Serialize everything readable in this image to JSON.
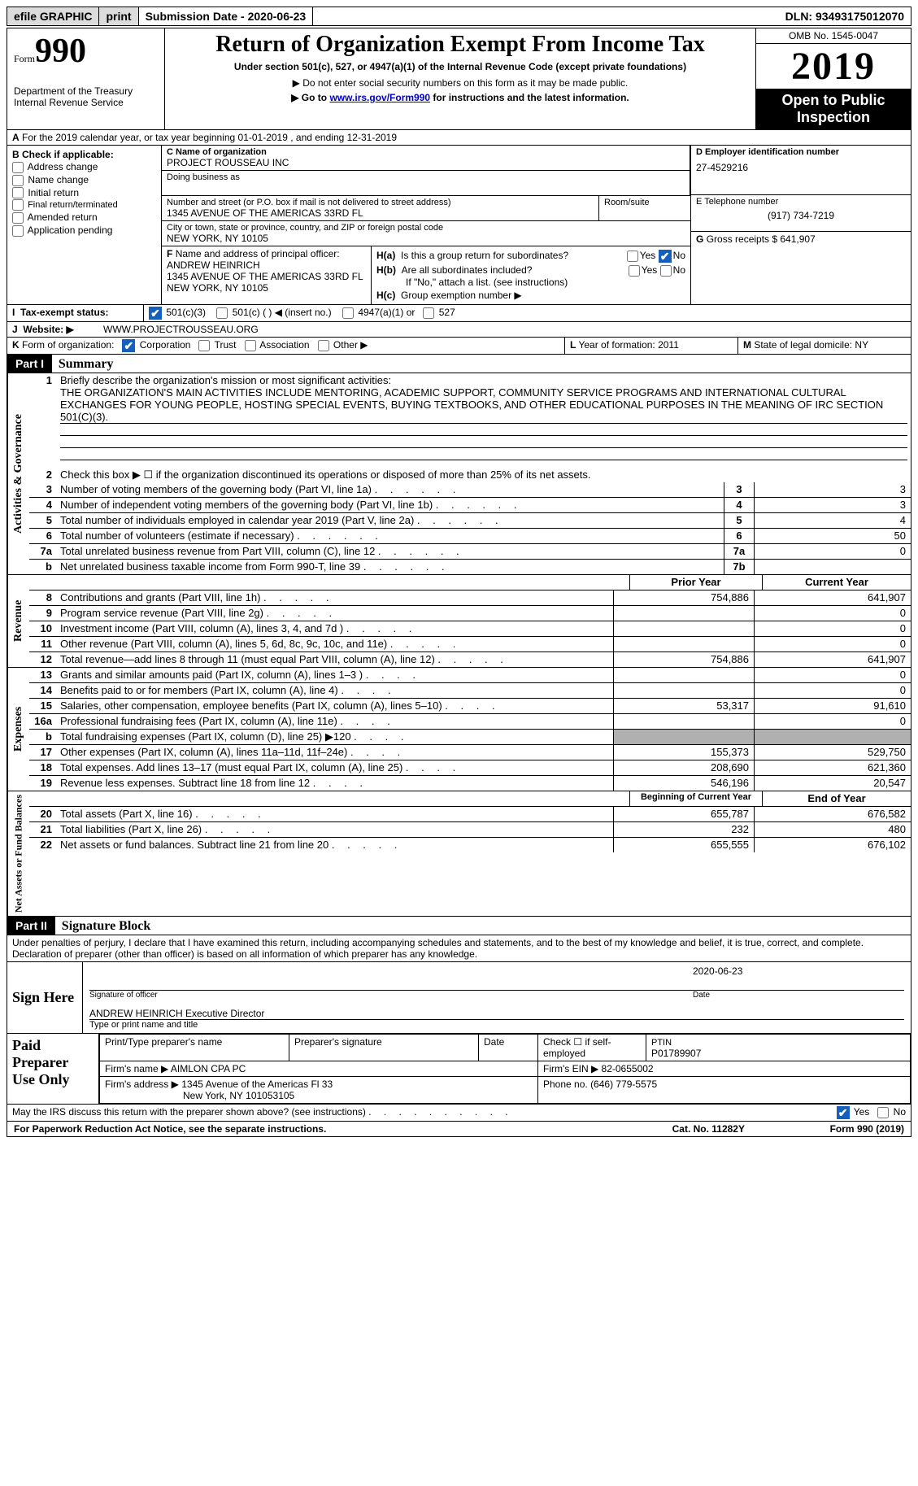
{
  "topbar": {
    "efile": "efile GRAPHIC",
    "print": "print",
    "submission": "Submission Date - 2020-06-23",
    "dln": "DLN: 93493175012070"
  },
  "header": {
    "form_label": "Form",
    "form_num": "990",
    "dept": "Department of the Treasury\nInternal Revenue Service",
    "title": "Return of Organization Exempt From Income Tax",
    "subtitle": "Under section 501(c), 527, or 4947(a)(1) of the Internal Revenue Code (except private foundations)",
    "note1": "▶ Do not enter social security numbers on this form as it may be made public.",
    "note2_pre": "▶ Go to ",
    "note2_link": "www.irs.gov/Form990",
    "note2_post": " for instructions and the latest information.",
    "omb": "OMB No. 1545-0047",
    "year": "2019",
    "open": "Open to Public Inspection"
  },
  "section_a": "For the 2019 calendar year, or tax year beginning 01-01-2019   , and ending 12-31-2019",
  "block_b": {
    "title": "B Check if applicable:",
    "opts": [
      "Address change",
      "Name change",
      "Initial return",
      "Final return/terminated",
      "Amended return",
      "Application pending"
    ]
  },
  "block_c": {
    "name_label": "C Name of organization",
    "name": "PROJECT ROUSSEAU INC",
    "dba_label": "Doing business as",
    "dba": "",
    "addr_label": "Number and street (or P.O. box if mail is not delivered to street address)",
    "room_label": "Room/suite",
    "addr": "1345 AVENUE OF THE AMERICAS 33RD FL",
    "city_label": "City or town, state or province, country, and ZIP or foreign postal code",
    "city": "NEW YORK, NY  10105"
  },
  "block_d": {
    "label": "D Employer identification number",
    "value": "27-4529216"
  },
  "block_e": {
    "label": "E Telephone number",
    "value": "(917) 734-7219"
  },
  "block_g": {
    "label": "G",
    "text": "Gross receipts $ 641,907"
  },
  "block_f": {
    "label": "F",
    "desc": "Name and address of principal officer:",
    "name": "ANDREW HEINRICH",
    "addr1": "1345 AVENUE OF THE AMERICAS 33RD FL",
    "addr2": "NEW YORK, NY  10105"
  },
  "block_h": {
    "ha_label": "H(a)",
    "ha_text": "Is this a group return for subordinates?",
    "yes": "Yes",
    "no": "No",
    "hb_label": "H(b)",
    "hb_text": "Are all subordinates included?",
    "hb_note": "If \"No,\" attach a list. (see instructions)",
    "hc_label": "H(c)",
    "hc_text": "Group exemption number ▶"
  },
  "block_i": {
    "label": "I",
    "text": "Tax-exempt status:",
    "c3": "501(c)(3)",
    "c": "501(c) (   ) ◀ (insert no.)",
    "a1": "4947(a)(1) or",
    "s527": "527"
  },
  "block_j": {
    "label": "J",
    "text_label": "Website: ▶",
    "text": "WWW.PROJECTROUSSEAU.ORG"
  },
  "block_k": {
    "label": "K",
    "text": "Form of organization:",
    "corp": "Corporation",
    "trust": "Trust",
    "assoc": "Association",
    "other": "Other ▶"
  },
  "block_l": {
    "label": "L",
    "text": "Year of formation: 2011"
  },
  "block_m": {
    "label": "M",
    "text": "State of legal domicile: NY"
  },
  "part1": {
    "header": "Part I",
    "title": "Summary"
  },
  "activities": {
    "label": "Activities & Governance",
    "line1_label": "1",
    "line1_desc": "Briefly describe the organization's mission or most significant activities:",
    "line1_text": "THE ORGANIZATION'S MAIN ACTIVITIES INCLUDE MENTORING, ACADEMIC SUPPORT, COMMUNITY SERVICE PROGRAMS AND INTERNATIONAL CULTURAL EXCHANGES FOR YOUNG PEOPLE, HOSTING SPECIAL EVENTS, BUYING TEXTBOOKS, AND OTHER EDUCATIONAL PURPOSES IN THE MEANING OF IRC SECTION 501(C)(3).",
    "line2_label": "2",
    "line2_desc": "Check this box ▶ ☐  if the organization discontinued its operations or disposed of more than 25% of its net assets.",
    "rows": [
      {
        "n": "3",
        "d": "Number of voting members of the governing body (Part VI, line 1a)",
        "box": "3",
        "v": "3"
      },
      {
        "n": "4",
        "d": "Number of independent voting members of the governing body (Part VI, line 1b)",
        "box": "4",
        "v": "3"
      },
      {
        "n": "5",
        "d": "Total number of individuals employed in calendar year 2019 (Part V, line 2a)",
        "box": "5",
        "v": "4"
      },
      {
        "n": "6",
        "d": "Total number of volunteers (estimate if necessary)",
        "box": "6",
        "v": "50"
      },
      {
        "n": "7a",
        "d": "Total unrelated business revenue from Part VIII, column (C), line 12",
        "box": "7a",
        "v": "0"
      },
      {
        "n": "b",
        "d": "Net unrelated business taxable income from Form 990-T, line 39",
        "box": "7b",
        "v": ""
      }
    ]
  },
  "revenue": {
    "label": "Revenue",
    "head_prior": "Prior Year",
    "head_current": "Current Year",
    "rows": [
      {
        "n": "8",
        "d": "Contributions and grants (Part VIII, line 1h)",
        "p": "754,886",
        "c": "641,907"
      },
      {
        "n": "9",
        "d": "Program service revenue (Part VIII, line 2g)",
        "p": "",
        "c": "0"
      },
      {
        "n": "10",
        "d": "Investment income (Part VIII, column (A), lines 3, 4, and 7d )",
        "p": "",
        "c": "0"
      },
      {
        "n": "11",
        "d": "Other revenue (Part VIII, column (A), lines 5, 6d, 8c, 9c, 10c, and 11e)",
        "p": "",
        "c": "0"
      },
      {
        "n": "12",
        "d": "Total revenue—add lines 8 through 11 (must equal Part VIII, column (A), line 12)",
        "p": "754,886",
        "c": "641,907"
      }
    ]
  },
  "expenses": {
    "label": "Expenses",
    "rows": [
      {
        "n": "13",
        "d": "Grants and similar amounts paid (Part IX, column (A), lines 1–3 )",
        "p": "",
        "c": "0"
      },
      {
        "n": "14",
        "d": "Benefits paid to or for members (Part IX, column (A), line 4)",
        "p": "",
        "c": "0"
      },
      {
        "n": "15",
        "d": "Salaries, other compensation, employee benefits (Part IX, column (A), lines 5–10)",
        "p": "53,317",
        "c": "91,610"
      },
      {
        "n": "16a",
        "d": "Professional fundraising fees (Part IX, column (A), line 11e)",
        "p": "",
        "c": "0"
      },
      {
        "n": "b",
        "d": "Total fundraising expenses (Part IX, column (D), line 25) ▶120",
        "p": "GREY",
        "c": "GREY"
      },
      {
        "n": "17",
        "d": "Other expenses (Part IX, column (A), lines 11a–11d, 11f–24e)",
        "p": "155,373",
        "c": "529,750"
      },
      {
        "n": "18",
        "d": "Total expenses. Add lines 13–17 (must equal Part IX, column (A), line 25)",
        "p": "208,690",
        "c": "621,360"
      },
      {
        "n": "19",
        "d": "Revenue less expenses. Subtract line 18 from line 12",
        "p": "546,196",
        "c": "20,547"
      }
    ]
  },
  "netassets": {
    "label": "Net Assets or Fund Balances",
    "head_begin": "Beginning of Current Year",
    "head_end": "End of Year",
    "rows": [
      {
        "n": "20",
        "d": "Total assets (Part X, line 16)",
        "p": "655,787",
        "c": "676,582"
      },
      {
        "n": "21",
        "d": "Total liabilities (Part X, line 26)",
        "p": "232",
        "c": "480"
      },
      {
        "n": "22",
        "d": "Net assets or fund balances. Subtract line 21 from line 20",
        "p": "655,555",
        "c": "676,102"
      }
    ]
  },
  "part2": {
    "header": "Part II",
    "title": "Signature Block",
    "perjury": "Under penalties of perjury, I declare that I have examined this return, including accompanying schedules and statements, and to the best of my knowledge and belief, it is true, correct, and complete. Declaration of preparer (other than officer) is based on all information of which preparer has any knowledge."
  },
  "sign": {
    "label": "Sign Here",
    "sig_officer": "Signature of officer",
    "date_label": "Date",
    "date": "2020-06-23",
    "name": "ANDREW HEINRICH  Executive Director",
    "name_label": "Type or print name and title"
  },
  "preparer": {
    "label": "Paid Preparer Use Only",
    "c1": "Print/Type preparer's name",
    "c2": "Preparer's signature",
    "c3": "Date",
    "c4_check": "Check ☐ if self-employed",
    "c5_label": "PTIN",
    "c5": "P01789907",
    "firm_name_label": "Firm's name    ▶",
    "firm_name": "AIMLON CPA PC",
    "firm_ein_label": "Firm's EIN ▶",
    "firm_ein": "82-0655002",
    "firm_addr_label": "Firm's address ▶",
    "firm_addr": "1345 Avenue of the Americas Fl 33",
    "firm_addr2": "New York, NY  101053105",
    "phone_label": "Phone no.",
    "phone": "(646) 779-5575"
  },
  "discuss": {
    "text": "May the IRS discuss this return with the preparer shown above? (see instructions)",
    "yes": "Yes",
    "no": "No"
  },
  "footer": {
    "left": "For Paperwork Reduction Act Notice, see the separate instructions.",
    "mid": "Cat. No. 11282Y",
    "right": "Form 990 (2019)"
  },
  "colors": {
    "link": "#0000cc",
    "check": "#1560bd"
  }
}
